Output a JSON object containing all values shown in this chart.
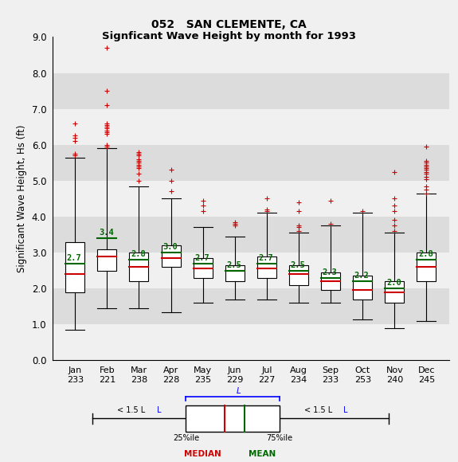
{
  "title1": "052   SAN CLEMENTE, CA",
  "title2": "Signficant Wave Height by month for 1993",
  "ylabel": "Significant Wave Height, Hs (ft)",
  "ylim": [
    0.0,
    9.0
  ],
  "yticks": [
    0.0,
    1.0,
    2.0,
    3.0,
    4.0,
    5.0,
    6.0,
    7.0,
    8.0,
    9.0
  ],
  "months": [
    "Jan",
    "Feb",
    "Mar",
    "Apr",
    "May",
    "Jun",
    "Jul",
    "Aug",
    "Sep",
    "Oct",
    "Nov",
    "Dec"
  ],
  "counts": [
    233,
    221,
    238,
    228,
    235,
    229,
    227,
    234,
    233,
    253,
    240,
    245
  ],
  "means": [
    2.7,
    3.4,
    2.8,
    3.0,
    2.7,
    2.5,
    2.7,
    2.5,
    2.3,
    2.2,
    2.0,
    2.8
  ],
  "medians": [
    2.4,
    2.9,
    2.6,
    2.85,
    2.55,
    2.5,
    2.55,
    2.4,
    2.2,
    1.95,
    1.9,
    2.6
  ],
  "q1": [
    1.9,
    2.5,
    2.2,
    2.6,
    2.3,
    2.2,
    2.3,
    2.1,
    1.95,
    1.7,
    1.6,
    2.2
  ],
  "q3": [
    3.3,
    3.1,
    3.0,
    3.2,
    2.85,
    2.65,
    2.9,
    2.65,
    2.45,
    2.35,
    2.2,
    3.0
  ],
  "whisker_low": [
    0.85,
    1.45,
    1.45,
    1.35,
    1.6,
    1.7,
    1.7,
    1.6,
    1.6,
    1.15,
    0.9,
    1.1
  ],
  "whisker_high": [
    5.65,
    5.9,
    4.85,
    4.5,
    3.7,
    3.45,
    4.1,
    3.55,
    3.75,
    4.1,
    3.55,
    4.65
  ],
  "outliers": [
    [
      5.7,
      5.75,
      6.1,
      6.2,
      6.25,
      6.6
    ],
    [
      5.95,
      6.0,
      6.3,
      6.35,
      6.4,
      6.45,
      6.5,
      6.55,
      6.6,
      7.1,
      7.5,
      8.7
    ],
    [
      5.0,
      5.2,
      5.35,
      5.4,
      5.45,
      5.5,
      5.55,
      5.6,
      5.7,
      5.75,
      5.8
    ],
    [
      4.7,
      5.0,
      5.3
    ],
    [
      4.15,
      4.3,
      4.45
    ],
    [
      3.75,
      3.8,
      3.85
    ],
    [
      4.15,
      4.2,
      4.5
    ],
    [
      3.6,
      3.7,
      3.75,
      4.15,
      4.4
    ],
    [
      3.8,
      4.45
    ],
    [
      4.15
    ],
    [
      3.6,
      3.75,
      3.9,
      4.15,
      4.3,
      4.5,
      5.25
    ],
    [
      4.65,
      4.75,
      4.85,
      5.05,
      5.1,
      5.2,
      5.25,
      5.3,
      5.35,
      5.4,
      5.45,
      5.5,
      5.55,
      5.95
    ]
  ],
  "box_color": "white",
  "median_color": "#cc0000",
  "mean_color": "#006600",
  "outlier_color": "#cc0000",
  "whisker_color": "black",
  "bg_color": "#f0f0f0",
  "stripe_color_dark": "#dcdcdc",
  "stripe_color_light": "#f0f0f0",
  "stripe_ranges_dark": [
    [
      1.0,
      2.0
    ],
    [
      3.0,
      4.0
    ],
    [
      5.0,
      6.0
    ],
    [
      7.0,
      8.0
    ]
  ],
  "stripe_ranges_light": [
    [
      0.0,
      1.0
    ],
    [
      2.0,
      3.0
    ],
    [
      4.0,
      5.0
    ],
    [
      6.0,
      7.0
    ],
    [
      8.0,
      9.0
    ]
  ]
}
